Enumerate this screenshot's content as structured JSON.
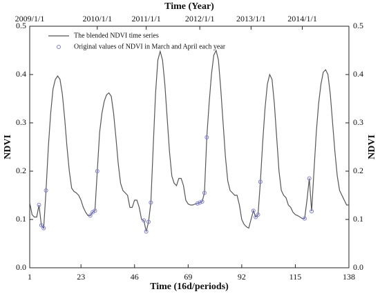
{
  "chart_data": {
    "type": "line",
    "x2label": "Time (Year)",
    "xlabel": "Time (16d/periods)",
    "ylabel": "NDVI",
    "y2label": "NDVI",
    "xlim": [
      1,
      138
    ],
    "xticks": [
      1,
      23,
      46,
      69,
      92,
      115,
      138
    ],
    "x2ticks": [
      {
        "value": 1,
        "label": "2009/1/1"
      },
      {
        "value": 30,
        "label": "2010/1/1"
      },
      {
        "value": 51,
        "label": "2011/1/1"
      },
      {
        "value": 74,
        "label": "2012/1/1"
      },
      {
        "value": 96,
        "label": "2013/1/1"
      },
      {
        "value": 118,
        "label": "2014/1/1"
      }
    ],
    "ylim": [
      0,
      0.5
    ],
    "yticks": [
      {
        "value": 0,
        "label": "0.0"
      },
      0.1,
      0.2,
      0.3,
      0.4,
      0.5
    ],
    "y2lim": [
      0,
      0.5
    ],
    "y2ticks": [
      {
        "value": 0,
        "label": "0.0"
      },
      0.1,
      0.2,
      0.3,
      0.4,
      0.5
    ],
    "legend": "top-left",
    "series": [
      {
        "name": "The blended NDVI time series",
        "type": "line",
        "color": "#555555",
        "x": [
          1,
          2,
          3,
          4,
          5,
          6,
          7,
          8,
          9,
          10,
          11,
          12,
          13,
          14,
          15,
          16,
          17,
          18,
          19,
          20,
          21,
          22,
          23,
          24,
          25,
          26,
          27,
          28,
          29,
          30,
          31,
          32,
          33,
          34,
          35,
          36,
          37,
          38,
          39,
          40,
          41,
          42,
          43,
          44,
          45,
          46,
          47,
          48,
          49,
          50,
          51,
          52,
          53,
          54,
          55,
          56,
          57,
          58,
          59,
          60,
          61,
          62,
          63,
          64,
          65,
          66,
          67,
          68,
          69,
          70,
          71,
          72,
          73,
          74,
          75,
          76,
          77,
          78,
          79,
          80,
          81,
          82,
          83,
          84,
          85,
          86,
          87,
          88,
          89,
          90,
          91,
          92,
          93,
          94,
          95,
          96,
          97,
          98,
          99,
          100,
          101,
          102,
          103,
          104,
          105,
          106,
          107,
          108,
          109,
          110,
          111,
          112,
          113,
          114,
          115,
          116,
          117,
          118,
          119,
          120,
          121,
          122,
          123,
          124,
          125,
          126,
          127,
          128,
          129,
          130,
          131,
          132,
          133,
          134,
          135,
          136,
          137,
          138
        ],
        "values": [
          0.135,
          0.11,
          0.105,
          0.105,
          0.13,
          0.088,
          0.082,
          0.16,
          0.25,
          0.32,
          0.37,
          0.39,
          0.397,
          0.39,
          0.36,
          0.31,
          0.25,
          0.2,
          0.165,
          0.158,
          0.155,
          0.15,
          0.14,
          0.125,
          0.115,
          0.108,
          0.108,
          0.115,
          0.118,
          0.2,
          0.28,
          0.32,
          0.345,
          0.358,
          0.362,
          0.355,
          0.32,
          0.27,
          0.215,
          0.175,
          0.16,
          0.155,
          0.15,
          0.125,
          0.125,
          0.14,
          0.14,
          0.125,
          0.1,
          0.098,
          0.075,
          0.095,
          0.135,
          0.25,
          0.36,
          0.43,
          0.448,
          0.43,
          0.38,
          0.31,
          0.24,
          0.19,
          0.175,
          0.17,
          0.185,
          0.185,
          0.17,
          0.14,
          0.132,
          0.13,
          0.13,
          0.132,
          0.133,
          0.135,
          0.137,
          0.155,
          0.27,
          0.34,
          0.4,
          0.44,
          0.45,
          0.43,
          0.37,
          0.3,
          0.23,
          0.18,
          0.16,
          0.155,
          0.15,
          0.15,
          0.13,
          0.1,
          0.09,
          0.085,
          0.082,
          0.1,
          0.118,
          0.105,
          0.11,
          0.178,
          0.26,
          0.33,
          0.38,
          0.4,
          0.39,
          0.34,
          0.27,
          0.2,
          0.16,
          0.15,
          0.145,
          0.13,
          0.125,
          0.115,
          0.11,
          0.108,
          0.105,
          0.102,
          0.102,
          0.14,
          0.185,
          0.117,
          0.2,
          0.28,
          0.34,
          0.38,
          0.405,
          0.41,
          0.4,
          0.36,
          0.3,
          0.24,
          0.19,
          0.16,
          0.15,
          0.14,
          0.13,
          0.13
        ]
      },
      {
        "name": "Original values of NDVI in March and April each year",
        "type": "scatter",
        "color": "#7b7bea",
        "x": [
          5,
          6,
          7,
          8,
          27,
          28,
          29,
          30,
          50,
          51,
          52,
          53,
          73,
          74,
          75,
          76,
          77,
          97,
          98,
          99,
          100,
          119,
          121,
          122
        ],
        "values": [
          0.13,
          0.088,
          0.082,
          0.16,
          0.108,
          0.115,
          0.118,
          0.2,
          0.098,
          0.075,
          0.095,
          0.135,
          0.133,
          0.135,
          0.137,
          0.155,
          0.27,
          0.118,
          0.105,
          0.11,
          0.178,
          0.102,
          0.185,
          0.117
        ]
      }
    ]
  }
}
